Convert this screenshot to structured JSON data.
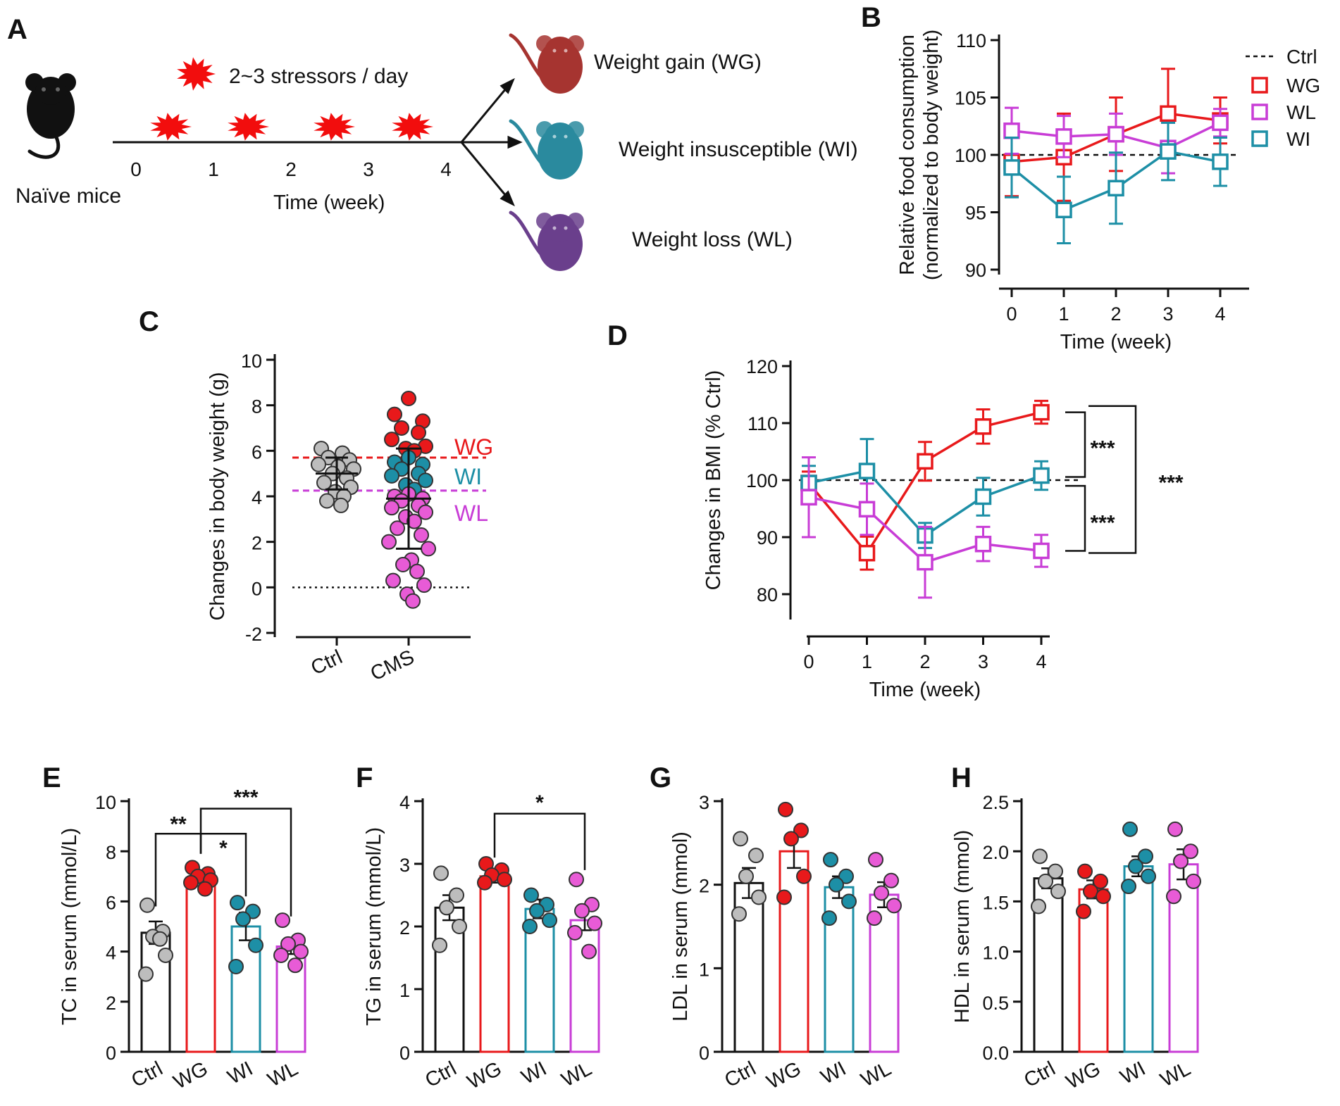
{
  "colors": {
    "ctrl": "#bdbdbd",
    "wg": "#e8191b",
    "wi": "#1d8fa6",
    "wl": "#c83dd6",
    "wl_dot": "#e85bd6",
    "wg_mouse": "#a63430",
    "wi_mouse": "#2a8a9e",
    "wl_mouse": "#6a3f8c",
    "stress": "#f20d0d",
    "black": "#111111"
  },
  "panel_labels": {
    "a": "A",
    "b": "B",
    "c": "C",
    "d": "D",
    "e": "E",
    "f": "F",
    "g": "G",
    "h": "H"
  },
  "panelA": {
    "stress_label": "2~3 stressors / day",
    "start_label": "Naïve mice",
    "time_label": "Time (week)",
    "ticks": [
      "0",
      "1",
      "2",
      "3",
      "4"
    ],
    "outcomes": [
      {
        "key": "wg",
        "label": "Weight gain  (WG)"
      },
      {
        "key": "wi",
        "label": "Weight  insusceptible (WI)"
      },
      {
        "key": "wl",
        "label": "Weight loss (WL)"
      }
    ]
  },
  "chart_data": [
    {
      "id": "B",
      "type": "line",
      "ylabel_lines": [
        "Relative food consumption",
        "(normalized to body weight)"
      ],
      "xlabel": "Time (week)",
      "x": [
        0,
        1,
        2,
        3,
        4
      ],
      "ylim": [
        90,
        110
      ],
      "yticks": [
        90,
        95,
        100,
        105,
        110
      ],
      "reference": {
        "name": "Ctrl",
        "value": 100
      },
      "series": [
        {
          "name": "WG",
          "color": "wg",
          "values": [
            99.4,
            99.8,
            101.8,
            103.6,
            103.0
          ],
          "err": [
            3.0,
            3.8,
            3.2,
            3.9,
            2.0
          ]
        },
        {
          "name": "WL",
          "color": "wl",
          "values": [
            102.1,
            101.6,
            101.8,
            100.6,
            102.8
          ],
          "err": [
            2.0,
            1.8,
            1.8,
            2.2,
            1.2
          ]
        },
        {
          "name": "WI",
          "color": "wi",
          "values": [
            98.9,
            95.2,
            97.1,
            100.3,
            99.4
          ],
          "err": [
            2.6,
            2.9,
            3.1,
            2.5,
            2.1
          ]
        }
      ],
      "legend": [
        "Ctrl",
        "WG",
        "WL",
        "WI"
      ]
    },
    {
      "id": "C",
      "type": "scatter",
      "ylabel": "Changes in body weight (g)",
      "categories": [
        "Ctrl",
        "CMS"
      ],
      "ylim": [
        -2,
        10
      ],
      "yticks": [
        -2,
        0,
        2,
        4,
        6,
        8,
        10
      ],
      "thresholds": [
        {
          "name": "WG",
          "value": 5.7,
          "color": "wg"
        },
        {
          "name": "WI",
          "value": 5.0,
          "color": "wi"
        },
        {
          "name": "WL",
          "value": 4.25,
          "color": "wl"
        }
      ],
      "ctrl": {
        "values": [
          6.1,
          5.9,
          5.7,
          5.6,
          5.4,
          5.3,
          5.2,
          5.0,
          4.8,
          4.6,
          4.4,
          4.2,
          4.0,
          3.8,
          3.6
        ],
        "mean": 5.0,
        "err": 0.7
      },
      "cms": {
        "mean": 3.9,
        "err_low": 1.7,
        "err_high": 6.1,
        "wg": [
          8.3,
          7.6,
          7.3,
          7.0,
          6.8,
          6.5,
          6.2,
          6.1,
          6.0
        ],
        "wi": [
          5.7,
          5.5,
          5.4,
          5.2,
          5.0,
          4.9,
          4.7,
          4.5,
          4.3
        ],
        "wl": [
          4.1,
          4.0,
          3.9,
          3.8,
          3.6,
          3.5,
          3.3,
          3.1,
          2.9,
          2.6,
          2.3,
          2.0,
          1.7,
          1.2,
          1.0,
          0.7,
          0.3,
          0.1,
          -0.3,
          -0.6
        ]
      }
    },
    {
      "id": "D",
      "type": "line",
      "ylabel": "Changes in BMI (% Ctrl)",
      "xlabel": "Time (week)",
      "x": [
        0,
        1,
        2,
        3,
        4
      ],
      "ylim": [
        80,
        120
      ],
      "yticks": [
        80,
        90,
        100,
        110,
        120
      ],
      "reference": {
        "name": "Ctrl",
        "value": 100
      },
      "series": [
        {
          "name": "WG",
          "color": "wg",
          "values": [
            99.5,
            87.2,
            103.3,
            109.4,
            111.9
          ],
          "err": [
            2.0,
            2.9,
            3.4,
            3.0,
            2.0
          ]
        },
        {
          "name": "WI",
          "color": "wi",
          "values": [
            99.5,
            101.6,
            90.3,
            97.1,
            100.8
          ],
          "err": [
            3.0,
            5.6,
            2.2,
            3.3,
            2.5
          ]
        },
        {
          "name": "WL",
          "color": "wl",
          "values": [
            97.0,
            94.9,
            85.6,
            88.8,
            87.6
          ],
          "err": [
            7.0,
            4.5,
            6.2,
            3.0,
            2.8
          ]
        }
      ],
      "significance": [
        "***",
        "***",
        "***"
      ]
    },
    {
      "id": "E",
      "type": "bar",
      "ylabel": "TC in serum (mmol/L)",
      "categories": [
        "Ctrl",
        "WG",
        "WI",
        "WL"
      ],
      "ylim": [
        0,
        10
      ],
      "yticks": [
        0,
        2,
        4,
        6,
        8,
        10
      ],
      "values": [
        4.75,
        6.95,
        5.0,
        4.2
      ],
      "err": [
        0.45,
        0.2,
        0.55,
        0.3
      ],
      "points": [
        [
          5.85,
          4.8,
          4.6,
          3.85,
          3.1,
          4.5
        ],
        [
          7.35,
          7.1,
          7.0,
          6.85,
          6.75,
          6.5
        ],
        [
          5.95,
          5.6,
          5.3,
          4.25,
          3.4
        ],
        [
          5.25,
          4.45,
          4.3,
          4.0,
          3.85,
          3.45
        ]
      ],
      "significance": [
        {
          "from": 0,
          "to": 1,
          "label": "**"
        },
        {
          "from": 1,
          "to": 2,
          "label": "*"
        },
        {
          "from": 1,
          "to": 3,
          "label": "***"
        }
      ]
    },
    {
      "id": "F",
      "type": "bar",
      "ylabel": "TG in serum (mmol/L)",
      "categories": [
        "Ctrl",
        "WG",
        "WI",
        "WL"
      ],
      "ylim": [
        0,
        4
      ],
      "yticks": [
        0,
        1,
        2,
        3,
        4
      ],
      "values": [
        2.3,
        2.8,
        2.28,
        2.1
      ],
      "err": [
        0.2,
        0.1,
        0.15,
        0.16
      ],
      "points": [
        [
          2.85,
          2.5,
          2.3,
          2.0,
          1.7
        ],
        [
          3.0,
          2.9,
          2.82,
          2.75,
          2.7
        ],
        [
          2.5,
          2.35,
          2.25,
          2.1,
          2.0
        ],
        [
          2.75,
          2.35,
          2.25,
          2.05,
          1.9,
          1.6
        ]
      ],
      "significance": [
        {
          "from": 1,
          "to": 3,
          "label": "*"
        }
      ]
    },
    {
      "id": "G",
      "type": "bar",
      "ylabel": "LDL in serum (mmol)",
      "categories": [
        "Ctrl",
        "WG",
        "WI",
        "WL"
      ],
      "ylim": [
        0,
        3
      ],
      "yticks": [
        0,
        1,
        2,
        3
      ],
      "values": [
        2.02,
        2.4,
        1.97,
        1.88
      ],
      "err": [
        0.18,
        0.2,
        0.13,
        0.15
      ],
      "points": [
        [
          2.55,
          2.35,
          2.1,
          1.85,
          1.65
        ],
        [
          2.9,
          2.65,
          2.55,
          2.1,
          1.85
        ],
        [
          2.3,
          2.1,
          2.0,
          1.8,
          1.6
        ],
        [
          2.3,
          2.05,
          1.9,
          1.75,
          1.6
        ]
      ],
      "significance": []
    },
    {
      "id": "H",
      "type": "bar",
      "ylabel": "HDL in serum (mmol)",
      "categories": [
        "Ctrl",
        "WG",
        "WI",
        "WL"
      ],
      "ylim": [
        0,
        2.5
      ],
      "yticks": [
        "0.0",
        "0.5",
        "1.0",
        "1.5",
        "2.0",
        "2.5"
      ],
      "values": [
        1.73,
        1.62,
        1.85,
        1.87
      ],
      "err": [
        0.1,
        0.09,
        0.1,
        0.15
      ],
      "points": [
        [
          1.95,
          1.8,
          1.7,
          1.6,
          1.45
        ],
        [
          1.8,
          1.7,
          1.6,
          1.55,
          1.4
        ],
        [
          2.22,
          1.95,
          1.85,
          1.75,
          1.65
        ],
        [
          2.22,
          2.0,
          1.9,
          1.7,
          1.55
        ]
      ],
      "significance": []
    }
  ]
}
